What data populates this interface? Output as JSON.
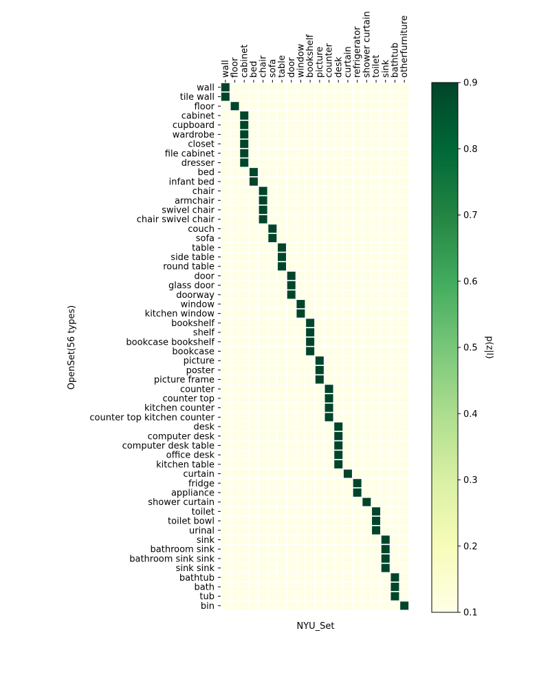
{
  "chart_data": {
    "type": "heatmap",
    "title": "",
    "xlabel": "NYU_Set",
    "ylabel": "OpenSet(56 types)",
    "colorbar_label": "p(z|l)",
    "colorbar_ticks": [
      "0.1",
      "0.2",
      "0.3",
      "0.4",
      "0.5",
      "0.6",
      "0.7",
      "0.8",
      "0.9"
    ],
    "color_range": [
      0.1,
      0.9
    ],
    "colormap": "YlGn",
    "x_categories": [
      "wall",
      "floor",
      "cabinet",
      "bed",
      "chair",
      "sofa",
      "table",
      "door",
      "window",
      "bookshelf",
      "picture",
      "counter",
      "desk",
      "curtain",
      "refrigerator",
      "shower curtain",
      "toilet",
      "sink",
      "bathtub",
      "otherfurniture"
    ],
    "y_categories": [
      "wall",
      "tile wall",
      "floor",
      "cabinet",
      "cupboard",
      "wardrobe",
      "closet",
      "file cabinet",
      "dresser",
      "bed",
      "infant bed",
      "chair",
      "armchair",
      "swivel chair",
      "chair swivel chair",
      "couch",
      "sofa",
      "table",
      "side table",
      "round table",
      "door",
      "glass door",
      "doorway",
      "window",
      "kitchen window",
      "bookshelf",
      "shelf",
      "bookcase bookshelf",
      "bookcase",
      "picture",
      "poster",
      "picture frame",
      "counter",
      "counter top",
      "kitchen counter",
      "counter top kitchen counter",
      "desk",
      "computer desk",
      "computer desk table",
      "office desk",
      "kitchen table",
      "curtain",
      "fridge",
      "appliance",
      "shower curtain",
      "toilet",
      "toilet bowl",
      "urinal",
      "sink",
      "bathroom sink",
      "bathroom sink sink",
      "sink sink",
      "bathtub",
      "bath",
      "tub",
      "bin"
    ],
    "high_value": 0.9,
    "low_value": 0.1,
    "assignments": [
      0,
      0,
      1,
      2,
      2,
      2,
      2,
      2,
      2,
      3,
      3,
      4,
      4,
      4,
      4,
      5,
      5,
      6,
      6,
      6,
      7,
      7,
      7,
      8,
      8,
      9,
      9,
      9,
      9,
      10,
      10,
      10,
      11,
      11,
      11,
      11,
      12,
      12,
      12,
      12,
      12,
      13,
      14,
      14,
      15,
      16,
      16,
      16,
      17,
      17,
      17,
      17,
      18,
      18,
      18,
      19
    ]
  }
}
